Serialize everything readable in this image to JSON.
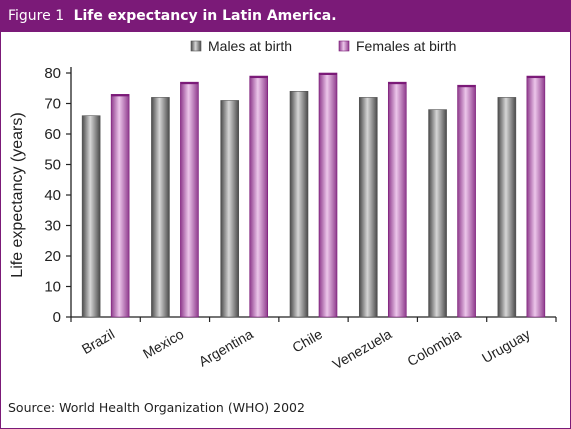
{
  "figure": {
    "label": "Figure 1",
    "title": "Life expectancy in Latin America."
  },
  "source": "Source: World Health Organization (WHO) 2002",
  "colors": {
    "frame": "#7b1a78",
    "male_bar": "#6e6e6e",
    "female_bar": "#a35ba1"
  },
  "chart_data": {
    "type": "bar",
    "categories": [
      "Brazil",
      "Mexico",
      "Argentina",
      "Chile",
      "Venezuela",
      "Colombia",
      "Uruguay"
    ],
    "series": [
      {
        "name": "Males at birth",
        "values": [
          66,
          72,
          71,
          74,
          72,
          68,
          72
        ]
      },
      {
        "name": "Females at birth",
        "values": [
          73,
          77,
          79,
          80,
          77,
          76,
          79
        ]
      }
    ],
    "ylabel": "Life expectancy (years)",
    "xlabel": "",
    "ylim": [
      0,
      80
    ],
    "yticks": [
      0,
      10,
      20,
      30,
      40,
      50,
      60,
      70,
      80
    ],
    "grid": false,
    "legend": "top"
  }
}
